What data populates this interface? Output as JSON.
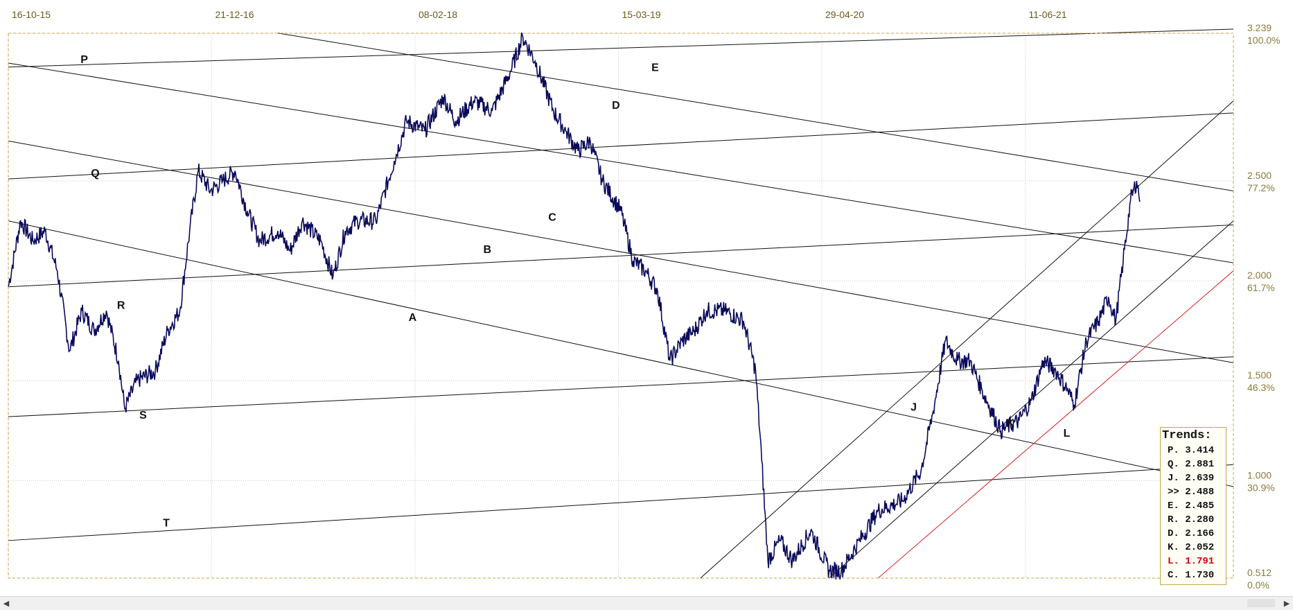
{
  "chart_data": {
    "type": "line",
    "title": "",
    "x_ticks": [
      "16-10-15",
      "21-12-16",
      "08-02-18",
      "15-03-19",
      "29-04-20",
      "11-06-21"
    ],
    "y_ticks": [
      {
        "value": 3.239,
        "label": "3.239",
        "pct": "100.0%"
      },
      {
        "value": 2.5,
        "label": "2.500",
        "pct": "77.2%"
      },
      {
        "value": 2.0,
        "label": "2.000",
        "pct": "61.7%"
      },
      {
        "value": 1.5,
        "label": "1.500",
        "pct": "46.3%"
      },
      {
        "value": 1.0,
        "label": "1.000",
        "pct": "30.9%"
      },
      {
        "value": 0.512,
        "label": "0.512",
        "pct": "0.0%"
      }
    ],
    "ylim": [
      0.512,
      3.239
    ],
    "xlim": [
      0,
      100
    ],
    "grid": true,
    "colors": {
      "price": "#0a0a5a",
      "trend": "#111111",
      "trend_highlight": "#d42020",
      "frame": "#c8a44a",
      "grid": "#c8c8c8"
    },
    "price_anchors": [
      [
        0.0,
        1.97
      ],
      [
        1.0,
        2.3
      ],
      [
        2.0,
        2.2
      ],
      [
        3.0,
        2.25
      ],
      [
        4.0,
        2.05
      ],
      [
        5.0,
        1.65
      ],
      [
        6.0,
        1.85
      ],
      [
        7.0,
        1.75
      ],
      [
        8.0,
        1.85
      ],
      [
        9.0,
        1.6
      ],
      [
        9.5,
        1.36
      ],
      [
        10.5,
        1.5
      ],
      [
        12.0,
        1.55
      ],
      [
        13.0,
        1.75
      ],
      [
        14.0,
        1.85
      ],
      [
        14.8,
        2.25
      ],
      [
        15.5,
        2.55
      ],
      [
        16.5,
        2.45
      ],
      [
        17.5,
        2.5
      ],
      [
        18.5,
        2.55
      ],
      [
        19.5,
        2.35
      ],
      [
        20.5,
        2.2
      ],
      [
        22.0,
        2.25
      ],
      [
        23.0,
        2.15
      ],
      [
        24.0,
        2.3
      ],
      [
        25.5,
        2.2
      ],
      [
        26.5,
        2.02
      ],
      [
        27.5,
        2.25
      ],
      [
        28.5,
        2.3
      ],
      [
        30.0,
        2.3
      ],
      [
        31.5,
        2.6
      ],
      [
        32.5,
        2.8
      ],
      [
        34.0,
        2.75
      ],
      [
        35.5,
        2.92
      ],
      [
        36.5,
        2.8
      ],
      [
        38.0,
        2.9
      ],
      [
        39.5,
        2.85
      ],
      [
        41.0,
        3.05
      ],
      [
        42.0,
        3.22
      ],
      [
        43.0,
        3.1
      ],
      [
        44.5,
        2.85
      ],
      [
        45.5,
        2.75
      ],
      [
        46.5,
        2.65
      ],
      [
        47.5,
        2.7
      ],
      [
        48.5,
        2.5
      ],
      [
        50.0,
        2.35
      ],
      [
        51.0,
        2.1
      ],
      [
        52.0,
        2.05
      ],
      [
        53.0,
        1.95
      ],
      [
        54.0,
        1.6
      ],
      [
        55.0,
        1.7
      ],
      [
        56.0,
        1.75
      ],
      [
        57.0,
        1.85
      ],
      [
        58.5,
        1.85
      ],
      [
        60.0,
        1.8
      ],
      [
        61.0,
        1.55
      ],
      [
        61.5,
        1.1
      ],
      [
        62.0,
        0.6
      ],
      [
        63.0,
        0.7
      ],
      [
        64.0,
        0.6
      ],
      [
        65.5,
        0.75
      ],
      [
        67.0,
        0.55
      ],
      [
        68.0,
        0.55
      ],
      [
        69.5,
        0.7
      ],
      [
        71.0,
        0.85
      ],
      [
        73.0,
        0.9
      ],
      [
        74.5,
        1.05
      ],
      [
        75.5,
        1.35
      ],
      [
        76.5,
        1.7
      ],
      [
        77.5,
        1.6
      ],
      [
        78.5,
        1.6
      ],
      [
        79.5,
        1.45
      ],
      [
        81.0,
        1.25
      ],
      [
        82.5,
        1.3
      ],
      [
        83.5,
        1.4
      ],
      [
        84.5,
        1.6
      ],
      [
        85.5,
        1.55
      ],
      [
        86.5,
        1.45
      ],
      [
        87.0,
        1.38
      ],
      [
        88.0,
        1.7
      ],
      [
        89.0,
        1.8
      ],
      [
        89.8,
        1.92
      ],
      [
        90.4,
        1.8
      ],
      [
        91.0,
        2.1
      ],
      [
        91.6,
        2.4
      ],
      [
        92.1,
        2.5
      ],
      [
        92.4,
        2.4
      ]
    ],
    "trend_lines": [
      {
        "name": "P",
        "p1": [
          0,
          3.07
        ],
        "p2": [
          100,
          3.26
        ]
      },
      {
        "name": "Q",
        "p1": [
          0,
          2.51
        ],
        "p2": [
          100,
          2.84
        ]
      },
      {
        "name": "R",
        "p1": [
          0,
          1.97
        ],
        "p2": [
          100,
          2.28
        ]
      },
      {
        "name": "S",
        "p1": [
          0,
          1.32
        ],
        "p2": [
          100,
          1.62
        ]
      },
      {
        "name": "T",
        "p1": [
          0,
          0.7
        ],
        "p2": [
          100,
          1.08
        ]
      },
      {
        "name": "E",
        "p1": [
          22,
          3.24
        ],
        "p2": [
          100,
          2.45
        ]
      },
      {
        "name": "D",
        "p1": [
          0,
          3.09
        ],
        "p2": [
          100,
          2.09
        ]
      },
      {
        "name": "C",
        "p1": [
          0,
          2.7
        ],
        "p2": [
          100,
          1.59
        ]
      },
      {
        "name": "A",
        "p1": [
          0,
          2.3
        ],
        "p2": [
          100,
          0.97
        ]
      },
      {
        "name": "J",
        "p1": [
          56.5,
          0.512
        ],
        "p2": [
          100,
          2.9
        ]
      },
      {
        "name": "K",
        "p1": [
          67.0,
          0.512
        ],
        "p2": [
          100,
          2.3
        ]
      },
      {
        "name": "L",
        "p1": [
          71.0,
          0.512
        ],
        "p2": [
          100,
          2.05
        ],
        "highlight": true
      }
    ],
    "line_labels": [
      {
        "text": "P",
        "at": [
          6.2,
          3.09
        ]
      },
      {
        "text": "E",
        "at": [
          52.8,
          3.05
        ]
      },
      {
        "text": "D",
        "at": [
          49.6,
          2.86
        ]
      },
      {
        "text": "Q",
        "at": [
          7.1,
          2.52
        ]
      },
      {
        "text": "C",
        "at": [
          44.4,
          2.3
        ]
      },
      {
        "text": "B",
        "at": [
          39.1,
          2.14
        ]
      },
      {
        "text": "R",
        "at": [
          9.2,
          1.86
        ]
      },
      {
        "text": "A",
        "at": [
          33.0,
          1.8
        ]
      },
      {
        "text": "S",
        "at": [
          11.0,
          1.31
        ]
      },
      {
        "text": "J",
        "at": [
          73.9,
          1.35
        ]
      },
      {
        "text": "K",
        "at": [
          81.8,
          1.27
        ]
      },
      {
        "text": "L",
        "at": [
          86.4,
          1.22
        ],
        "highlight": true
      },
      {
        "text": "T",
        "at": [
          12.9,
          0.77
        ]
      }
    ],
    "legend": {
      "title": "Trends:",
      "placement": "bottom-right",
      "entries": [
        {
          "label": "P. 3.414",
          "highlight": false
        },
        {
          "label": "Q. 2.881",
          "highlight": false
        },
        {
          "label": "J. 2.639",
          "highlight": false
        },
        {
          "label": ">> 2.488",
          "highlight": false
        },
        {
          "label": "E. 2.485",
          "highlight": false
        },
        {
          "label": "R. 2.280",
          "highlight": false
        },
        {
          "label": "D. 2.166",
          "highlight": false
        },
        {
          "label": "K. 2.052",
          "highlight": false
        },
        {
          "label": "L. 1.791",
          "highlight": true
        },
        {
          "label": "C. 1.730",
          "highlight": false
        }
      ]
    }
  }
}
